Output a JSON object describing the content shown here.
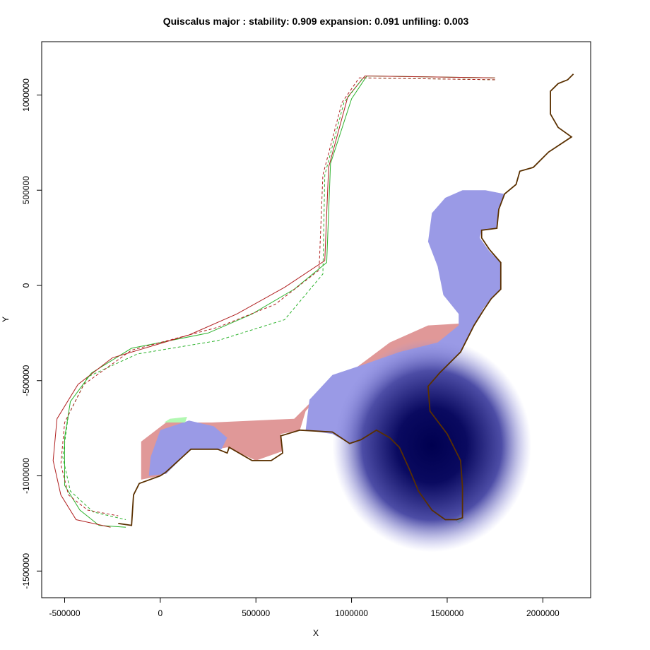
{
  "chart_data": {
    "type": "heatmap",
    "title": "Quiscalus major : stability: 0.909 expansion: 0.091 unfiling: 0.003",
    "xlabel": "X",
    "ylabel": "Y",
    "xlim": [
      -620000,
      2250000
    ],
    "ylim": [
      -1640000,
      1280000
    ],
    "x_ticks": [
      -500000,
      0,
      500000,
      1000000,
      1500000,
      2000000
    ],
    "x_tick_labels": [
      "-500000",
      "0",
      "500000",
      "1000000",
      "1500000",
      "2000000"
    ],
    "y_ticks": [
      -1500000,
      -1000000,
      -500000,
      0,
      500000,
      1000000
    ],
    "y_tick_labels": [
      "-1500000",
      "-1000000",
      "-500000",
      "0",
      "500000",
      "1000000"
    ],
    "grid": false,
    "categories": [
      "stability",
      "expansion",
      "unfilling"
    ],
    "values": [
      0.909,
      0.091,
      0.003
    ],
    "colors": {
      "stability": "#9a9ae6",
      "stability_dense": "#000055",
      "expansion": "#e09898",
      "unfilling": "#b2f8b2",
      "native_line": "#2db32d",
      "invaded_line": "#b02020",
      "coast": "#5a3000"
    },
    "regions": [
      {
        "name": "expansion",
        "points": [
          [
            -100000,
            -1020000
          ],
          [
            -100000,
            -820000
          ],
          [
            30000,
            -720000
          ],
          [
            270000,
            -720000
          ],
          [
            700000,
            -700000
          ],
          [
            900000,
            -500000
          ],
          [
            1100000,
            -420000
          ],
          [
            1300000,
            -380000
          ],
          [
            1490000,
            -360000
          ],
          [
            1570000,
            -250000
          ],
          [
            1570000,
            -200000
          ],
          [
            1400000,
            -210000
          ],
          [
            1200000,
            -300000
          ],
          [
            1000000,
            -450000
          ],
          [
            850000,
            -560000
          ],
          [
            760000,
            -660000
          ],
          [
            730000,
            -760000
          ],
          [
            630000,
            -780000
          ],
          [
            640000,
            -870000
          ],
          [
            500000,
            -920000
          ],
          [
            350000,
            -850000
          ],
          [
            300000,
            -860000
          ],
          [
            150000,
            -860000
          ],
          [
            0,
            -1000000
          ]
        ]
      },
      {
        "name": "stability",
        "points": [
          [
            -50000,
            -900000
          ],
          [
            0,
            -760000
          ],
          [
            150000,
            -710000
          ],
          [
            280000,
            -740000
          ],
          [
            350000,
            -800000
          ],
          [
            320000,
            -860000
          ],
          [
            160000,
            -860000
          ],
          [
            30000,
            -990000
          ],
          [
            -60000,
            -1000000
          ]
        ]
      },
      {
        "name": "stability",
        "points": [
          [
            760000,
            -760000
          ],
          [
            780000,
            -600000
          ],
          [
            900000,
            -470000
          ],
          [
            1050000,
            -420000
          ],
          [
            1250000,
            -350000
          ],
          [
            1450000,
            -300000
          ],
          [
            1560000,
            -210000
          ],
          [
            1560000,
            -150000
          ],
          [
            1480000,
            -50000
          ],
          [
            1450000,
            100000
          ],
          [
            1400000,
            230000
          ],
          [
            1420000,
            380000
          ],
          [
            1490000,
            460000
          ],
          [
            1580000,
            500000
          ],
          [
            1700000,
            500000
          ],
          [
            1800000,
            480000
          ],
          [
            1770000,
            390000
          ],
          [
            1760000,
            300000
          ],
          [
            1680000,
            290000
          ],
          [
            1670000,
            250000
          ],
          [
            1720000,
            180000
          ],
          [
            1780000,
            120000
          ],
          [
            1780000,
            -20000
          ],
          [
            1730000,
            -70000
          ],
          [
            1690000,
            -120000
          ],
          [
            1640000,
            -210000
          ],
          [
            1570000,
            -350000
          ],
          [
            1470000,
            -460000
          ],
          [
            1400000,
            -530000
          ],
          [
            1410000,
            -650000
          ],
          [
            1500000,
            -770000
          ],
          [
            1580000,
            -920000
          ],
          [
            1580000,
            -1060000
          ],
          [
            1560000,
            -1230000
          ],
          [
            1490000,
            -1230000
          ],
          [
            1430000,
            -1200000
          ],
          [
            1360000,
            -1080000
          ],
          [
            1300000,
            -960000
          ],
          [
            1250000,
            -850000
          ],
          [
            1130000,
            -760000
          ],
          [
            1050000,
            -810000
          ],
          [
            990000,
            -830000
          ],
          [
            900000,
            -780000
          ]
        ]
      },
      {
        "name": "unfilling",
        "points": [
          [
            20000,
            -720000
          ],
          [
            50000,
            -700000
          ],
          [
            140000,
            -690000
          ],
          [
            130000,
            -720000
          ]
        ]
      },
      {
        "name": "unfilling",
        "points": [
          [
            1540000,
            -1230000
          ],
          [
            1560000,
            -1210000
          ],
          [
            1590000,
            -1230000
          ],
          [
            1560000,
            -1250000
          ]
        ]
      }
    ],
    "hotspot": {
      "center": [
        1420000,
        -840000
      ],
      "radius_x": 520000,
      "radius_y": 560000
    },
    "outlines": [
      {
        "name": "native",
        "style": "solid",
        "points": [
          [
            1750000,
            1090000
          ],
          [
            1080000,
            1100000
          ],
          [
            1000000,
            980000
          ],
          [
            890000,
            640000
          ],
          [
            870000,
            120000
          ],
          [
            700000,
            -20000
          ],
          [
            480000,
            -150000
          ],
          [
            250000,
            -250000
          ],
          [
            -150000,
            -330000
          ],
          [
            -360000,
            -460000
          ],
          [
            -470000,
            -610000
          ],
          [
            -500000,
            -800000
          ],
          [
            -500000,
            -1050000
          ],
          [
            -420000,
            -1180000
          ],
          [
            -320000,
            -1260000
          ],
          [
            -180000,
            -1270000
          ]
        ]
      },
      {
        "name": "invaded",
        "style": "solid",
        "points": [
          [
            1750000,
            1090000
          ],
          [
            1070000,
            1100000
          ],
          [
            980000,
            990000
          ],
          [
            880000,
            620000
          ],
          [
            860000,
            130000
          ],
          [
            650000,
            -10000
          ],
          [
            400000,
            -150000
          ],
          [
            150000,
            -260000
          ],
          [
            -250000,
            -380000
          ],
          [
            -430000,
            -520000
          ],
          [
            -540000,
            -700000
          ],
          [
            -560000,
            -920000
          ],
          [
            -520000,
            -1100000
          ],
          [
            -440000,
            -1230000
          ],
          [
            -260000,
            -1270000
          ]
        ]
      },
      {
        "name": "native",
        "style": "dashed",
        "points": [
          [
            1750000,
            1080000
          ],
          [
            1060000,
            1090000
          ],
          [
            960000,
            960000
          ],
          [
            860000,
            580000
          ],
          [
            850000,
            60000
          ],
          [
            650000,
            -180000
          ],
          [
            300000,
            -290000
          ],
          [
            -120000,
            -360000
          ],
          [
            -380000,
            -480000
          ],
          [
            -480000,
            -680000
          ],
          [
            -510000,
            -900000
          ],
          [
            -470000,
            -1080000
          ],
          [
            -350000,
            -1190000
          ],
          [
            -180000,
            -1230000
          ]
        ]
      },
      {
        "name": "invaded",
        "style": "dashed",
        "points": [
          [
            1750000,
            1080000
          ],
          [
            1040000,
            1090000
          ],
          [
            950000,
            960000
          ],
          [
            850000,
            580000
          ],
          [
            830000,
            80000
          ],
          [
            600000,
            -100000
          ],
          [
            300000,
            -220000
          ],
          [
            -150000,
            -340000
          ],
          [
            -400000,
            -520000
          ],
          [
            -500000,
            -720000
          ],
          [
            -520000,
            -940000
          ],
          [
            -480000,
            -1100000
          ],
          [
            -380000,
            -1180000
          ],
          [
            -220000,
            -1210000
          ]
        ]
      }
    ],
    "coastline": [
      [
        -220000,
        -1250000
      ],
      [
        -150000,
        -1260000
      ],
      [
        -140000,
        -1100000
      ],
      [
        -110000,
        -1040000
      ],
      [
        0,
        -1000000
      ],
      [
        30000,
        -980000
      ],
      [
        160000,
        -860000
      ],
      [
        300000,
        -860000
      ],
      [
        350000,
        -880000
      ],
      [
        360000,
        -850000
      ],
      [
        480000,
        -920000
      ],
      [
        580000,
        -920000
      ],
      [
        640000,
        -880000
      ],
      [
        630000,
        -790000
      ],
      [
        730000,
        -760000
      ],
      [
        900000,
        -770000
      ],
      [
        990000,
        -830000
      ],
      [
        1050000,
        -810000
      ],
      [
        1130000,
        -760000
      ],
      [
        1200000,
        -800000
      ],
      [
        1250000,
        -850000
      ],
      [
        1300000,
        -960000
      ],
      [
        1350000,
        -1080000
      ],
      [
        1420000,
        -1180000
      ],
      [
        1490000,
        -1230000
      ],
      [
        1550000,
        -1230000
      ],
      [
        1580000,
        -1220000
      ],
      [
        1580000,
        -1060000
      ],
      [
        1570000,
        -920000
      ],
      [
        1500000,
        -780000
      ],
      [
        1410000,
        -660000
      ],
      [
        1400000,
        -530000
      ],
      [
        1460000,
        -460000
      ],
      [
        1570000,
        -350000
      ],
      [
        1640000,
        -210000
      ],
      [
        1690000,
        -130000
      ],
      [
        1730000,
        -70000
      ],
      [
        1780000,
        -20000
      ],
      [
        1780000,
        120000
      ],
      [
        1720000,
        190000
      ],
      [
        1680000,
        250000
      ],
      [
        1680000,
        290000
      ],
      [
        1760000,
        300000
      ],
      [
        1770000,
        400000
      ],
      [
        1800000,
        480000
      ],
      [
        1860000,
        530000
      ],
      [
        1880000,
        600000
      ],
      [
        1950000,
        620000
      ],
      [
        2030000,
        700000
      ],
      [
        2150000,
        780000
      ],
      [
        2080000,
        830000
      ],
      [
        2040000,
        900000
      ],
      [
        2040000,
        1020000
      ],
      [
        2080000,
        1060000
      ],
      [
        2130000,
        1080000
      ],
      [
        2160000,
        1110000
      ]
    ]
  }
}
